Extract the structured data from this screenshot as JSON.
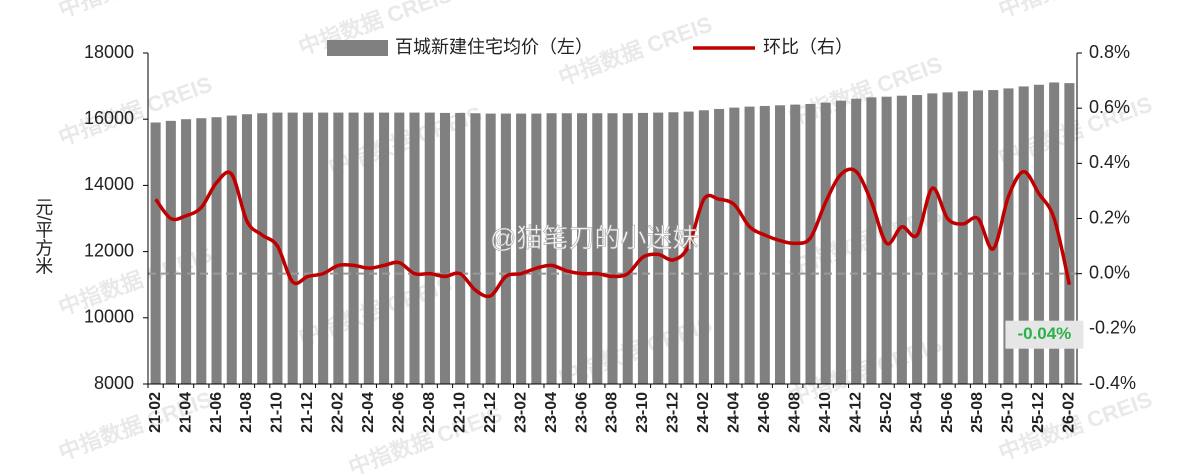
{
  "chart_data": {
    "type": "bar-line",
    "legend_position": "top",
    "y_label": "元/平方米",
    "watermarks": [
      "中指数据 CREIS",
      "@猫笔刀的小迷妹"
    ],
    "categories": [
      "21-02",
      null,
      "21-04",
      null,
      "21-06",
      null,
      "21-08",
      null,
      "21-10",
      null,
      "21-12",
      null,
      "22-02",
      null,
      "22-04",
      null,
      "22-06",
      null,
      "22-08",
      null,
      "22-10",
      null,
      "22-12",
      null,
      "23-02",
      null,
      "23-04",
      null,
      "23-06",
      null,
      "23-08",
      null,
      "23-10",
      null,
      "23-12",
      null,
      "24-02",
      null,
      "24-04",
      null,
      "24-06",
      null,
      "24-08",
      null,
      "24-10",
      null,
      "24-12",
      null,
      "25-02",
      null,
      "25-04",
      null,
      "25-06",
      null,
      "25-08",
      null,
      "25-10",
      null,
      "25-12",
      null,
      "26-02"
    ],
    "series": [
      {
        "name": "百城新建住宅均价（左）",
        "type": "bar",
        "color": "#808080",
        "values": [
          15900,
          15950,
          16000,
          16030,
          16060,
          16110,
          16150,
          16180,
          16200,
          16200,
          16200,
          16200,
          16200,
          16200,
          16200,
          16200,
          16200,
          16200,
          16200,
          16190,
          16190,
          16180,
          16170,
          16170,
          16170,
          16170,
          16180,
          16180,
          16180,
          16180,
          16180,
          16180,
          16190,
          16200,
          16210,
          16230,
          16270,
          16310,
          16350,
          16380,
          16400,
          16420,
          16440,
          16460,
          16500,
          16560,
          16620,
          16660,
          16680,
          16710,
          16730,
          16780,
          16810,
          16840,
          16870,
          16880,
          16930,
          16990,
          17040,
          17110,
          17090
        ]
      },
      {
        "name": "环比（右）",
        "type": "line",
        "axis": "y2",
        "color": "#c00000",
        "values": [
          0.27,
          0.2,
          0.21,
          0.24,
          0.33,
          0.36,
          0.19,
          0.14,
          0.1,
          -0.03,
          -0.01,
          0.0,
          0.03,
          0.03,
          0.02,
          0.03,
          0.04,
          0.0,
          0.0,
          -0.01,
          0.0,
          -0.06,
          -0.08,
          -0.01,
          0.0,
          0.02,
          0.03,
          0.01,
          0.0,
          0.0,
          -0.01,
          0.0,
          0.06,
          0.07,
          0.05,
          0.1,
          0.27,
          0.27,
          0.25,
          0.17,
          0.14,
          0.12,
          0.11,
          0.13,
          0.26,
          0.36,
          0.37,
          0.26,
          0.11,
          0.17,
          0.14,
          0.31,
          0.2,
          0.18,
          0.2,
          0.09,
          0.28,
          0.37,
          0.29,
          0.2,
          -0.04
        ],
        "value_labels": [
          null,
          null,
          null,
          null,
          null,
          null,
          null,
          null,
          null,
          null,
          null,
          null,
          null,
          null,
          null,
          null,
          null,
          null,
          null,
          null,
          null,
          null,
          null,
          null,
          null,
          null,
          null,
          null,
          null,
          null,
          null,
          null,
          null,
          null,
          null,
          null,
          null,
          null,
          null,
          null,
          null,
          null,
          null,
          null,
          null,
          null,
          null,
          null,
          null,
          null,
          null,
          null,
          null,
          null,
          null,
          null,
          null,
          null,
          null,
          null,
          "-0.04%"
        ]
      }
    ],
    "ylim": [
      8000,
      18000
    ],
    "yticks": [
      8000,
      10000,
      12000,
      14000,
      16000,
      18000
    ],
    "y2lim": [
      -0.4,
      0.8
    ],
    "y2ticks": [
      {
        "value": -0.4,
        "label": "-0.4%"
      },
      {
        "value": -0.2,
        "label": "-0.2%"
      },
      {
        "value": 0,
        "label": "0.0%"
      },
      {
        "value": 0.2,
        "label": "0.2%"
      },
      {
        "value": 0.4,
        "label": "0.4%"
      },
      {
        "value": 0.6,
        "label": "0.6%"
      },
      {
        "value": 0.8,
        "label": "0.8%"
      }
    ],
    "zero_line_y2": true
  }
}
